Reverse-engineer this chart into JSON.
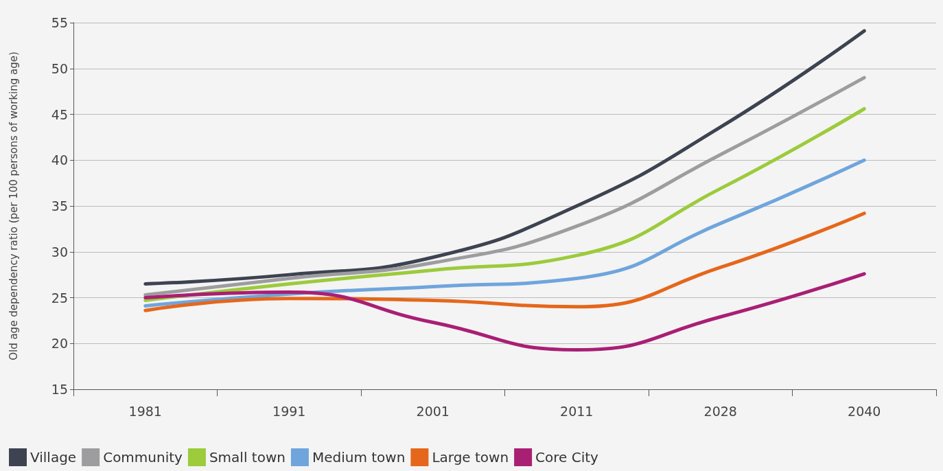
{
  "chart_data": {
    "type": "line",
    "ylabel": "Old age dependency ratio (per 100 persons of working age)",
    "categories": [
      "1981",
      "1991",
      "2001",
      "2011",
      "2028",
      "2040"
    ],
    "ylim": [
      15,
      55
    ],
    "yticks": [
      15,
      20,
      25,
      30,
      35,
      40,
      45,
      50,
      55
    ],
    "grid": "y",
    "legend": "bottom",
    "marker": "none",
    "line_style": "solid",
    "series": [
      {
        "name": "Village",
        "color": "#3d4350",
        "values": [
          26.5,
          27.5,
          29.4,
          35,
          43.6,
          54.1
        ]
      },
      {
        "name": "Community",
        "color": "#9d9d9f",
        "values": [
          25.3,
          27.1,
          28.8,
          32.8,
          40.6,
          49
        ]
      },
      {
        "name": "Small town",
        "color": "#9ccb3b",
        "values": [
          24.7,
          26.5,
          28,
          29.6,
          36.9,
          45.6
        ]
      },
      {
        "name": "Medium town",
        "color": "#6fa5dc",
        "values": [
          24.1,
          25.4,
          26.2,
          27.1,
          33.1,
          40
        ]
      },
      {
        "name": "Large town",
        "color": "#e5671b",
        "values": [
          23.6,
          24.9,
          24.7,
          24,
          28.3,
          34.2
        ]
      },
      {
        "name": "Core City",
        "color": "#a91f74",
        "values": [
          25,
          25.6,
          22.3,
          19.3,
          22.9,
          27.6
        ]
      }
    ]
  }
}
